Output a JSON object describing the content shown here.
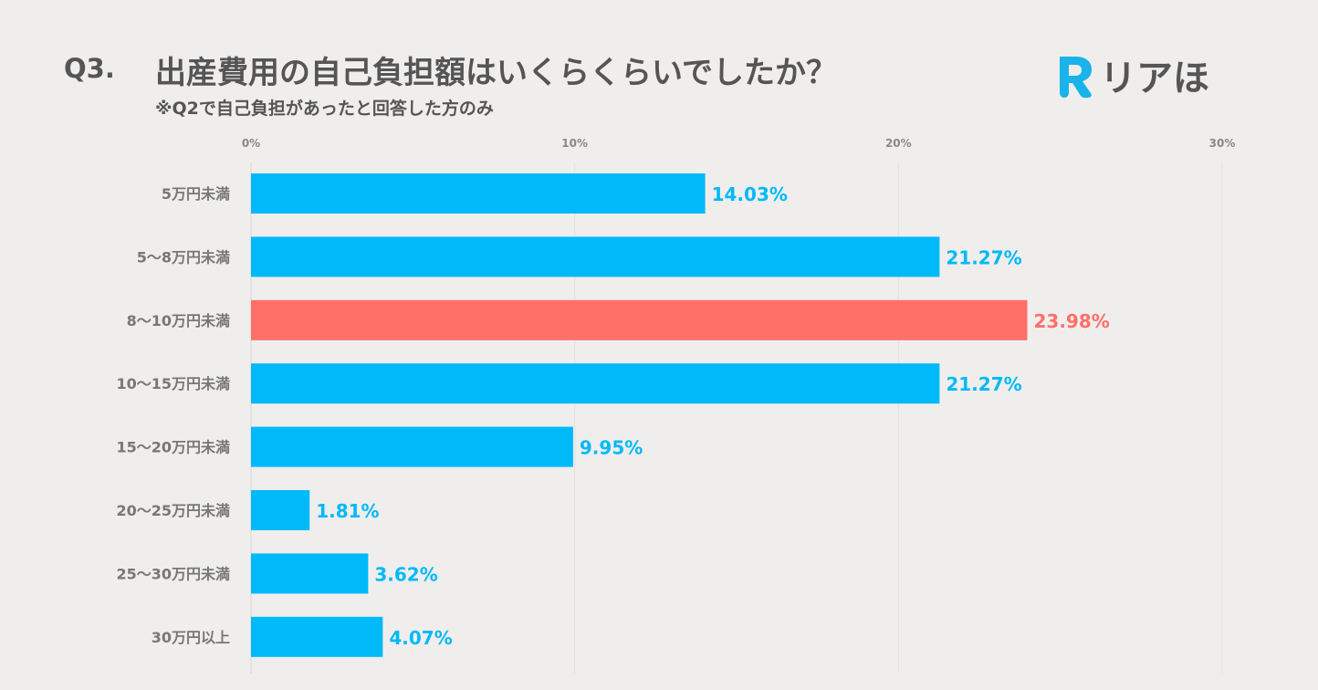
{
  "header": {
    "question_number": "Q3.",
    "title": "出産費用の自己負担額はいくらくらいでしたか？",
    "subtitle": "※Q2で自己負担があったと回答した方のみ"
  },
  "logo": {
    "text": "リアほ",
    "icon": "r-logo-icon",
    "color": "#19b3ea"
  },
  "chart_data": {
    "type": "bar",
    "orientation": "horizontal",
    "categories": [
      "5万円未満",
      "5〜8万円未満",
      "8〜10万円未満",
      "10〜15万円未満",
      "15〜20万円未満",
      "20〜25万円未満",
      "25〜30万円未満",
      "30万円以上"
    ],
    "values": [
      14.03,
      21.27,
      23.98,
      21.27,
      9.95,
      1.81,
      3.62,
      4.07
    ],
    "value_labels": [
      "14.03%",
      "21.27%",
      "23.98%",
      "21.27%",
      "9.95%",
      "1.81%",
      "3.62%",
      "4.07%"
    ],
    "highlight_index": 2,
    "xlim": [
      0,
      30
    ],
    "xticks": [
      0,
      10,
      20,
      30
    ],
    "xtick_labels": [
      "0%",
      "10%",
      "20%",
      "30%"
    ],
    "grid": true,
    "colors": {
      "bar": "#00b9f8",
      "highlight": "#ff7069",
      "grid": "#e2e1e0"
    }
  }
}
